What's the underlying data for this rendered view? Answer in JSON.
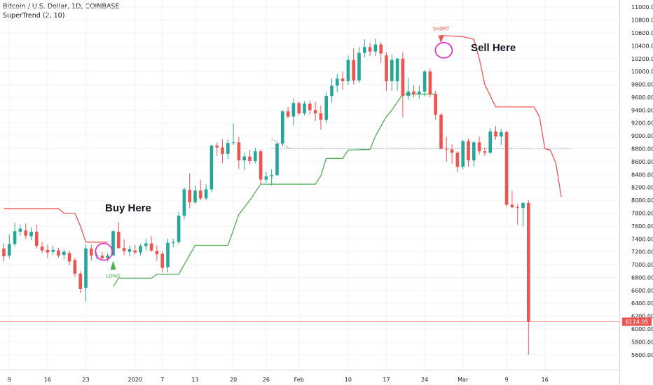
{
  "header": {
    "symbol_line": "Bitcoin / U.S. Dollar, 1D, COINBASE",
    "indicator_line": "SuperTrend (2, 10)"
  },
  "annotations": {
    "buy": "Buy Here",
    "sell": "Sell Here",
    "long_marker": "LONG",
    "short_marker": "SHORT"
  },
  "price_badge": "6114.05",
  "colors": {
    "up": "#26a69a",
    "down": "#ef5350",
    "supertrend_up": "#4caf50",
    "supertrend_down": "#ef5350",
    "circle": "#e91ec6",
    "grid": "#f0f3fa",
    "dotted_level": "#7b7bd1"
  },
  "chart_data": {
    "type": "candlestick",
    "y_axis": {
      "min": 5500,
      "max": 11100,
      "ticks": [
        5600,
        5800,
        6000,
        6200,
        6400,
        6600,
        6800,
        7000,
        7200,
        7400,
        7600,
        7800,
        8000,
        8200,
        8400,
        8600,
        8800,
        9000,
        9200,
        9400,
        9600,
        9800,
        10000,
        10200,
        10400,
        10600,
        10800,
        11000
      ]
    },
    "x_axis": {
      "labels": [
        "9",
        "16",
        "23",
        "2020",
        "7",
        "13",
        "20",
        "26",
        "Feb",
        "10",
        "17",
        "24",
        "Mar",
        "9",
        "16"
      ],
      "label_day_index": [
        1,
        8,
        15,
        24,
        29,
        35,
        42,
        48,
        54,
        63,
        70,
        77,
        84,
        92,
        99
      ]
    },
    "horizontal_levels": {
      "last_price": 6114.05,
      "dotted": 8800
    },
    "candles": [
      {
        "o": 7250,
        "h": 7330,
        "l": 7050,
        "c": 7130
      },
      {
        "o": 7140,
        "h": 7470,
        "l": 7100,
        "c": 7320
      },
      {
        "o": 7320,
        "h": 7650,
        "l": 7280,
        "c": 7520
      },
      {
        "o": 7510,
        "h": 7620,
        "l": 7450,
        "c": 7560
      },
      {
        "o": 7530,
        "h": 7640,
        "l": 7400,
        "c": 7450
      },
      {
        "o": 7440,
        "h": 7580,
        "l": 7380,
        "c": 7510
      },
      {
        "o": 7510,
        "h": 7620,
        "l": 7250,
        "c": 7290
      },
      {
        "o": 7280,
        "h": 7350,
        "l": 7180,
        "c": 7220
      },
      {
        "o": 7230,
        "h": 7310,
        "l": 7100,
        "c": 7190
      },
      {
        "o": 7200,
        "h": 7290,
        "l": 7150,
        "c": 7230
      },
      {
        "o": 7220,
        "h": 7260,
        "l": 7110,
        "c": 7140
      },
      {
        "o": 7150,
        "h": 7240,
        "l": 7080,
        "c": 7200
      },
      {
        "o": 7180,
        "h": 7220,
        "l": 6990,
        "c": 7050
      },
      {
        "o": 7070,
        "h": 7110,
        "l": 6810,
        "c": 6860
      },
      {
        "o": 6860,
        "h": 6900,
        "l": 6560,
        "c": 6620
      },
      {
        "o": 6640,
        "h": 7310,
        "l": 6430,
        "c": 7250
      },
      {
        "o": 7250,
        "h": 7310,
        "l": 7060,
        "c": 7140
      },
      {
        "o": 7140,
        "h": 7200,
        "l": 7080,
        "c": 7140
      },
      {
        "o": 7140,
        "h": 7200,
        "l": 7070,
        "c": 7100
      },
      {
        "o": 7100,
        "h": 7180,
        "l": 7050,
        "c": 7140
      },
      {
        "o": 7140,
        "h": 7530,
        "l": 7140,
        "c": 7520
      },
      {
        "o": 7510,
        "h": 7660,
        "l": 7240,
        "c": 7260
      },
      {
        "o": 7260,
        "h": 7390,
        "l": 7150,
        "c": 7210
      },
      {
        "o": 7200,
        "h": 7300,
        "l": 7130,
        "c": 7240
      },
      {
        "o": 7220,
        "h": 7310,
        "l": 7160,
        "c": 7190
      },
      {
        "o": 7190,
        "h": 7320,
        "l": 7140,
        "c": 7290
      },
      {
        "o": 7290,
        "h": 7400,
        "l": 7220,
        "c": 7330
      },
      {
        "o": 7330,
        "h": 7440,
        "l": 7200,
        "c": 7220
      },
      {
        "o": 7210,
        "h": 7300,
        "l": 7060,
        "c": 7160
      },
      {
        "o": 7170,
        "h": 7210,
        "l": 6880,
        "c": 6950
      },
      {
        "o": 6960,
        "h": 7400,
        "l": 6880,
        "c": 7340
      },
      {
        "o": 7340,
        "h": 7400,
        "l": 7270,
        "c": 7350
      },
      {
        "o": 7350,
        "h": 7820,
        "l": 7320,
        "c": 7760
      },
      {
        "o": 7760,
        "h": 8200,
        "l": 7700,
        "c": 8170
      },
      {
        "o": 8160,
        "h": 8420,
        "l": 7880,
        "c": 7970
      },
      {
        "o": 7970,
        "h": 8230,
        "l": 7950,
        "c": 8150
      },
      {
        "o": 8150,
        "h": 8320,
        "l": 8000,
        "c": 8030
      },
      {
        "o": 8030,
        "h": 8250,
        "l": 8000,
        "c": 8170
      },
      {
        "o": 8170,
        "h": 8860,
        "l": 8120,
        "c": 8850
      },
      {
        "o": 8850,
        "h": 8900,
        "l": 8690,
        "c": 8820
      },
      {
        "o": 8820,
        "h": 8950,
        "l": 8580,
        "c": 8720
      },
      {
        "o": 8720,
        "h": 8950,
        "l": 8640,
        "c": 8890
      },
      {
        "o": 8890,
        "h": 9190,
        "l": 8860,
        "c": 8900
      },
      {
        "o": 8900,
        "h": 8980,
        "l": 8490,
        "c": 8620
      },
      {
        "o": 8620,
        "h": 8740,
        "l": 8470,
        "c": 8680
      },
      {
        "o": 8680,
        "h": 8780,
        "l": 8560,
        "c": 8610
      },
      {
        "o": 8610,
        "h": 8820,
        "l": 8570,
        "c": 8760
      },
      {
        "o": 8760,
        "h": 8790,
        "l": 8250,
        "c": 8320
      },
      {
        "o": 8320,
        "h": 8440,
        "l": 8270,
        "c": 8370
      },
      {
        "o": 8370,
        "h": 8480,
        "l": 8230,
        "c": 8390
      },
      {
        "o": 8390,
        "h": 8900,
        "l": 8380,
        "c": 8880
      },
      {
        "o": 8880,
        "h": 9400,
        "l": 8840,
        "c": 9380
      },
      {
        "o": 9380,
        "h": 9450,
        "l": 9270,
        "c": 9300
      },
      {
        "o": 9300,
        "h": 9580,
        "l": 9160,
        "c": 9510
      },
      {
        "o": 9510,
        "h": 9540,
        "l": 9320,
        "c": 9350
      },
      {
        "o": 9350,
        "h": 9540,
        "l": 9320,
        "c": 9500
      },
      {
        "o": 9500,
        "h": 9550,
        "l": 9330,
        "c": 9400
      },
      {
        "o": 9400,
        "h": 9530,
        "l": 9230,
        "c": 9350
      },
      {
        "o": 9350,
        "h": 9470,
        "l": 9100,
        "c": 9250
      },
      {
        "o": 9250,
        "h": 9680,
        "l": 9200,
        "c": 9620
      },
      {
        "o": 9620,
        "h": 9890,
        "l": 9520,
        "c": 9780
      },
      {
        "o": 9780,
        "h": 9960,
        "l": 9680,
        "c": 9890
      },
      {
        "o": 9890,
        "h": 10000,
        "l": 9720,
        "c": 9850
      },
      {
        "o": 9850,
        "h": 10250,
        "l": 9790,
        "c": 10180
      },
      {
        "o": 10180,
        "h": 10360,
        "l": 9800,
        "c": 9860
      },
      {
        "o": 9860,
        "h": 10380,
        "l": 9830,
        "c": 10290
      },
      {
        "o": 10290,
        "h": 10500,
        "l": 10220,
        "c": 10380
      },
      {
        "o": 10380,
        "h": 10450,
        "l": 10240,
        "c": 10310
      },
      {
        "o": 10310,
        "h": 10510,
        "l": 10240,
        "c": 10420
      },
      {
        "o": 10420,
        "h": 10460,
        "l": 10130,
        "c": 10280
      },
      {
        "o": 10250,
        "h": 10300,
        "l": 9700,
        "c": 9850
      },
      {
        "o": 9850,
        "h": 10270,
        "l": 9700,
        "c": 10180
      },
      {
        "o": 9850,
        "h": 10210,
        "l": 9700,
        "c": 10200
      },
      {
        "o": 10200,
        "h": 10300,
        "l": 9290,
        "c": 9620
      },
      {
        "o": 9620,
        "h": 9900,
        "l": 9560,
        "c": 9690
      },
      {
        "o": 9690,
        "h": 9790,
        "l": 9600,
        "c": 9650
      },
      {
        "o": 9650,
        "h": 9780,
        "l": 9580,
        "c": 9690
      },
      {
        "o": 9690,
        "h": 10020,
        "l": 9610,
        "c": 10000
      },
      {
        "o": 10000,
        "h": 10050,
        "l": 9600,
        "c": 9650
      },
      {
        "o": 9650,
        "h": 9700,
        "l": 9250,
        "c": 9330
      },
      {
        "o": 9330,
        "h": 9350,
        "l": 8790,
        "c": 8800
      },
      {
        "o": 8800,
        "h": 8980,
        "l": 8600,
        "c": 8790
      },
      {
        "o": 8790,
        "h": 8870,
        "l": 8570,
        "c": 8740
      },
      {
        "o": 8740,
        "h": 8760,
        "l": 8440,
        "c": 8520
      },
      {
        "o": 8520,
        "h": 8940,
        "l": 8480,
        "c": 8920
      },
      {
        "o": 8920,
        "h": 8960,
        "l": 8520,
        "c": 8620
      },
      {
        "o": 8620,
        "h": 8920,
        "l": 8520,
        "c": 8900
      },
      {
        "o": 8900,
        "h": 8990,
        "l": 8710,
        "c": 8760
      },
      {
        "o": 8760,
        "h": 8820,
        "l": 8690,
        "c": 8740
      },
      {
        "o": 8740,
        "h": 9120,
        "l": 8720,
        "c": 9070
      },
      {
        "o": 9070,
        "h": 9150,
        "l": 8940,
        "c": 8990
      },
      {
        "o": 8990,
        "h": 9110,
        "l": 8860,
        "c": 9060
      },
      {
        "o": 9060,
        "h": 9080,
        "l": 7900,
        "c": 7930
      },
      {
        "o": 7930,
        "h": 8150,
        "l": 7880,
        "c": 7890
      },
      {
        "o": 7890,
        "h": 7940,
        "l": 7620,
        "c": 7880
      },
      {
        "o": 7880,
        "h": 7950,
        "l": 7590,
        "c": 7960
      },
      {
        "o": 7960,
        "h": 8000,
        "l": 5600,
        "c": 6114
      }
    ],
    "supertrend": [
      {
        "i": 0,
        "v": 7870,
        "trend": "down"
      },
      {
        "i": 10,
        "v": 7870,
        "trend": "down"
      },
      {
        "i": 11,
        "v": 7800,
        "trend": "down"
      },
      {
        "i": 13,
        "v": 7800,
        "trend": "down"
      },
      {
        "i": 14,
        "v": 7600,
        "trend": "down"
      },
      {
        "i": 15,
        "v": 7350,
        "trend": "down"
      },
      {
        "i": 19,
        "v": 7350,
        "trend": "down"
      },
      {
        "i": 20,
        "v": 6660,
        "trend": "up"
      },
      {
        "i": 21,
        "v": 6790,
        "trend": "up"
      },
      {
        "i": 27,
        "v": 6790,
        "trend": "up"
      },
      {
        "i": 28,
        "v": 6850,
        "trend": "up"
      },
      {
        "i": 32,
        "v": 6850,
        "trend": "up"
      },
      {
        "i": 34,
        "v": 7150,
        "trend": "up"
      },
      {
        "i": 35,
        "v": 7300,
        "trend": "up"
      },
      {
        "i": 41,
        "v": 7300,
        "trend": "up"
      },
      {
        "i": 43,
        "v": 7780,
        "trend": "up"
      },
      {
        "i": 45,
        "v": 8000,
        "trend": "up"
      },
      {
        "i": 47,
        "v": 8250,
        "trend": "up"
      },
      {
        "i": 57,
        "v": 8250,
        "trend": "up"
      },
      {
        "i": 58,
        "v": 8380,
        "trend": "up"
      },
      {
        "i": 59,
        "v": 8650,
        "trend": "up"
      },
      {
        "i": 62,
        "v": 8650,
        "trend": "up"
      },
      {
        "i": 63,
        "v": 8780,
        "trend": "up"
      },
      {
        "i": 67,
        "v": 8790,
        "trend": "up"
      },
      {
        "i": 68,
        "v": 9000,
        "trend": "up"
      },
      {
        "i": 69,
        "v": 9150,
        "trend": "up"
      },
      {
        "i": 70,
        "v": 9300,
        "trend": "up"
      },
      {
        "i": 71,
        "v": 9400,
        "trend": "up"
      },
      {
        "i": 73,
        "v": 9650,
        "trend": "up"
      },
      {
        "i": 79,
        "v": 9650,
        "trend": "up"
      },
      {
        "i": 80,
        "v": 10560,
        "trend": "down"
      },
      {
        "i": 84,
        "v": 10540,
        "trend": "down"
      },
      {
        "i": 86,
        "v": 10500,
        "trend": "down"
      },
      {
        "i": 87,
        "v": 10200,
        "trend": "down"
      },
      {
        "i": 88,
        "v": 9800,
        "trend": "down"
      },
      {
        "i": 90,
        "v": 9450,
        "trend": "down"
      },
      {
        "i": 97,
        "v": 9450,
        "trend": "down"
      },
      {
        "i": 98,
        "v": 9300,
        "trend": "down"
      },
      {
        "i": 99,
        "v": 8800,
        "trend": "down"
      },
      {
        "i": 100,
        "v": 8780,
        "trend": "down"
      },
      {
        "i": 101,
        "v": 8580,
        "trend": "down"
      },
      {
        "i": 102,
        "v": 8050,
        "trend": "down"
      }
    ]
  }
}
